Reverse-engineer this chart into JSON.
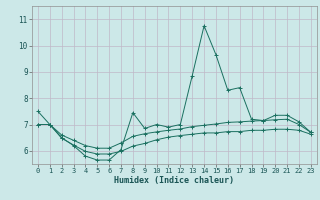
{
  "xlabel": "Humidex (Indice chaleur)",
  "bg_color": "#cce8e8",
  "grid_color": "#c0b8c8",
  "line_color": "#1a7060",
  "x_ticks": [
    0,
    1,
    2,
    3,
    4,
    5,
    6,
    7,
    8,
    9,
    10,
    11,
    12,
    13,
    14,
    15,
    16,
    17,
    18,
    19,
    20,
    21,
    22,
    23
  ],
  "y_ticks": [
    6,
    7,
    8,
    9,
    10,
    11
  ],
  "ylim": [
    5.5,
    11.5
  ],
  "xlim": [
    -0.5,
    23.5
  ],
  "line1_y": [
    7.5,
    7.0,
    6.5,
    6.2,
    5.8,
    5.65,
    5.65,
    6.05,
    7.45,
    6.85,
    7.0,
    6.9,
    7.0,
    8.85,
    10.75,
    9.65,
    8.3,
    8.4,
    7.2,
    7.15,
    7.35,
    7.35,
    7.1,
    6.7
  ],
  "line2_y": [
    7.0,
    7.0,
    6.6,
    6.4,
    6.2,
    6.1,
    6.1,
    6.3,
    6.55,
    6.65,
    6.72,
    6.78,
    6.83,
    6.92,
    6.97,
    7.02,
    7.08,
    7.1,
    7.13,
    7.15,
    7.18,
    7.2,
    7.0,
    6.7
  ],
  "line3_y": [
    7.0,
    7.0,
    6.48,
    6.22,
    5.98,
    5.88,
    5.88,
    5.98,
    6.18,
    6.28,
    6.42,
    6.52,
    6.58,
    6.63,
    6.68,
    6.68,
    6.73,
    6.73,
    6.78,
    6.78,
    6.82,
    6.82,
    6.78,
    6.63
  ]
}
